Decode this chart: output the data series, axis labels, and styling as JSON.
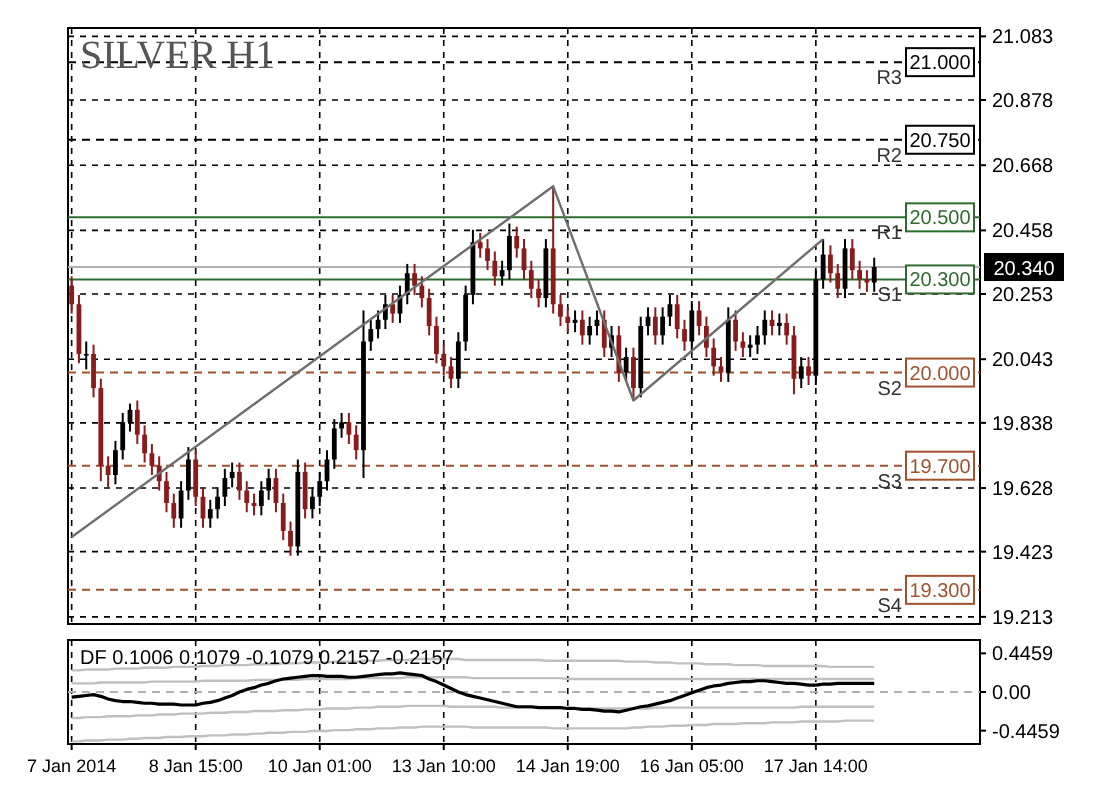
{
  "chart_data": [
    {
      "type": "candlestick",
      "title": "SILVER H1",
      "ylim": [
        19.19,
        21.11
      ],
      "categories": [
        null,
        null,
        null,
        null,
        null,
        null,
        null,
        null,
        null,
        null,
        null,
        null,
        null,
        null,
        null,
        null,
        null,
        null,
        null,
        null,
        null,
        null,
        null,
        null,
        null,
        null,
        null,
        null,
        null,
        null,
        null,
        null,
        null,
        null,
        null,
        null,
        null,
        null,
        null,
        null,
        null,
        null,
        null,
        null,
        null,
        null,
        null,
        null,
        null,
        null,
        null,
        null,
        null,
        null,
        null,
        null,
        null,
        null,
        null,
        null,
        null,
        null,
        null,
        null,
        null,
        null,
        null,
        null,
        null,
        null,
        null,
        null,
        null,
        null,
        null,
        null,
        null,
        null,
        null,
        null,
        null,
        null,
        null,
        null,
        null,
        null,
        null,
        null,
        null,
        null,
        null,
        null,
        null,
        null,
        null,
        null,
        null,
        null,
        null,
        null,
        null,
        null,
        null,
        null,
        null,
        null,
        null,
        null,
        null,
        null,
        null,
        null,
        null,
        null,
        null,
        null,
        null,
        null,
        null,
        null,
        null,
        null,
        null,
        null,
        null
      ],
      "yticks": [
        21.083,
        20.878,
        20.668,
        20.458,
        20.253,
        20.043,
        19.838,
        19.628,
        19.423,
        19.213
      ],
      "tick_labels": "y",
      "grid": true,
      "ref_lines": [
        {
          "axis": "y",
          "value": 21.0,
          "label": "R3",
          "color": "#000000",
          "line_style": "dashed"
        },
        {
          "axis": "y",
          "value": 20.75,
          "label": "R2",
          "color": "#000000",
          "line_style": "dashed"
        },
        {
          "axis": "y",
          "value": 20.5,
          "label": "R1",
          "color": "#2e6b2e",
          "line_style": "solid"
        },
        {
          "axis": "y",
          "value": 20.3,
          "label": "S1",
          "color": "#2e6b2e",
          "line_style": "solid"
        },
        {
          "axis": "y",
          "value": 20.0,
          "label": "S2",
          "color": "#a0522d",
          "line_style": "dashed"
        },
        {
          "axis": "y",
          "value": 19.7,
          "label": "S3",
          "color": "#a0522d",
          "line_style": "dashed"
        },
        {
          "axis": "y",
          "value": 19.3,
          "label": "S4",
          "color": "#a0522d",
          "line_style": "dashed"
        },
        {
          "axis": "y",
          "value": 20.34,
          "label": null,
          "color": "#b0b0b0",
          "line_style": "solid"
        }
      ],
      "annotations": [
        {
          "text": "21.000",
          "y": 21.0
        },
        {
          "text": "20.750",
          "y": 20.75
        },
        {
          "text": "20.500",
          "y": 20.5
        },
        {
          "text": "20.300",
          "y": 20.3
        },
        {
          "text": "20.000",
          "y": 20.0
        },
        {
          "text": "19.700",
          "y": 19.7
        },
        {
          "text": "19.300",
          "y": 19.3
        },
        {
          "text": "20.340",
          "y": 20.34
        }
      ],
      "series": [
        {
          "ohlc": [
            [
              20.28,
              20.31,
              20.19,
              20.22
            ],
            [
              20.22,
              20.25,
              20.03,
              20.06
            ],
            [
              20.06,
              20.1,
              20.01,
              20.06
            ],
            [
              20.06,
              20.09,
              19.92,
              19.95
            ],
            [
              19.95,
              19.98,
              19.65,
              19.7
            ],
            [
              19.7,
              19.73,
              19.63,
              19.67
            ],
            [
              19.67,
              19.78,
              19.64,
              19.75
            ],
            [
              19.75,
              19.87,
              19.72,
              19.84
            ],
            [
              19.84,
              19.9,
              19.81,
              19.88
            ],
            [
              19.88,
              19.91,
              19.77,
              19.8
            ],
            [
              19.8,
              19.83,
              19.71,
              19.74
            ],
            [
              19.74,
              19.77,
              19.67,
              19.7
            ],
            [
              19.7,
              19.73,
              19.62,
              19.65
            ],
            [
              19.65,
              19.68,
              19.55,
              19.58
            ],
            [
              19.58,
              19.61,
              19.5,
              19.53
            ],
            [
              19.53,
              19.65,
              19.5,
              19.62
            ],
            [
              19.62,
              19.76,
              19.59,
              19.72
            ],
            [
              19.72,
              19.75,
              19.57,
              19.6
            ],
            [
              19.6,
              19.63,
              19.5,
              19.53
            ],
            [
              19.53,
              19.59,
              19.5,
              19.56
            ],
            [
              19.56,
              19.63,
              19.53,
              19.6
            ],
            [
              19.6,
              19.69,
              19.57,
              19.66
            ],
            [
              19.66,
              19.71,
              19.63,
              19.68
            ],
            [
              19.68,
              19.71,
              19.59,
              19.62
            ],
            [
              19.62,
              19.65,
              19.55,
              19.58
            ],
            [
              19.58,
              19.61,
              19.54,
              19.57
            ],
            [
              19.57,
              19.65,
              19.54,
              19.62
            ],
            [
              19.62,
              19.69,
              19.59,
              19.66
            ],
            [
              19.66,
              19.69,
              19.55,
              19.58
            ],
            [
              19.58,
              19.61,
              19.46,
              19.49
            ],
            [
              19.49,
              19.52,
              19.41,
              19.44
            ],
            [
              19.44,
              19.72,
              19.41,
              19.68
            ],
            [
              19.68,
              19.71,
              19.53,
              19.56
            ],
            [
              19.56,
              19.63,
              19.53,
              19.6
            ],
            [
              19.6,
              19.68,
              19.57,
              19.65
            ],
            [
              19.65,
              19.75,
              19.62,
              19.72
            ],
            [
              19.72,
              19.85,
              19.69,
              19.82
            ],
            [
              19.82,
              19.87,
              19.79,
              19.84
            ],
            [
              19.84,
              19.87,
              19.77,
              19.8
            ],
            [
              19.8,
              19.83,
              19.72,
              19.75
            ],
            [
              19.75,
              20.2,
              19.66,
              20.1
            ],
            [
              20.1,
              20.17,
              20.07,
              20.14
            ],
            [
              20.14,
              20.2,
              20.11,
              20.17
            ],
            [
              20.17,
              20.25,
              20.14,
              20.22
            ],
            [
              20.22,
              20.25,
              20.16,
              20.19
            ],
            [
              20.19,
              20.28,
              20.16,
              20.25
            ],
            [
              20.25,
              20.35,
              20.22,
              20.32
            ],
            [
              20.32,
              20.35,
              20.25,
              20.28
            ],
            [
              20.28,
              20.31,
              20.21,
              20.24
            ],
            [
              20.24,
              20.27,
              20.12,
              20.15
            ],
            [
              20.15,
              20.18,
              20.03,
              20.06
            ],
            [
              20.06,
              20.09,
              19.99,
              20.02
            ],
            [
              20.02,
              20.05,
              19.95,
              19.98
            ],
            [
              19.98,
              20.13,
              19.95,
              20.1
            ],
            [
              20.1,
              20.28,
              20.07,
              20.25
            ],
            [
              20.25,
              20.46,
              20.22,
              20.42
            ],
            [
              20.42,
              20.45,
              20.37,
              20.4
            ],
            [
              20.4,
              20.43,
              20.33,
              20.36
            ],
            [
              20.36,
              20.39,
              20.28,
              20.31
            ],
            [
              20.31,
              20.36,
              20.28,
              20.33
            ],
            [
              20.33,
              20.48,
              20.3,
              20.44
            ],
            [
              20.44,
              20.47,
              20.37,
              20.4
            ],
            [
              20.4,
              20.43,
              20.3,
              20.33
            ],
            [
              20.33,
              20.36,
              20.24,
              20.27
            ],
            [
              20.27,
              20.3,
              20.21,
              20.24
            ],
            [
              20.24,
              20.43,
              20.21,
              20.4
            ],
            [
              20.4,
              20.6,
              20.19,
              20.22
            ],
            [
              20.22,
              20.25,
              20.15,
              20.18
            ],
            [
              20.18,
              20.21,
              20.13,
              20.16
            ],
            [
              20.16,
              20.2,
              20.13,
              20.17
            ],
            [
              20.17,
              20.2,
              20.09,
              20.12
            ],
            [
              20.12,
              20.18,
              20.09,
              20.15
            ],
            [
              20.15,
              20.2,
              20.12,
              20.17
            ],
            [
              20.17,
              20.2,
              20.05,
              20.08
            ],
            [
              20.08,
              20.15,
              20.05,
              20.12
            ],
            [
              20.12,
              20.15,
              19.97,
              20.0
            ],
            [
              20.0,
              20.08,
              19.97,
              20.05
            ],
            [
              20.05,
              20.08,
              19.91,
              19.95
            ],
            [
              19.95,
              20.18,
              19.92,
              20.15
            ],
            [
              20.15,
              20.21,
              20.12,
              20.18
            ],
            [
              20.18,
              20.21,
              20.09,
              20.12
            ],
            [
              20.12,
              20.21,
              20.09,
              20.18
            ],
            [
              20.18,
              20.25,
              20.15,
              20.22
            ],
            [
              20.22,
              20.25,
              20.11,
              20.14
            ],
            [
              20.14,
              20.17,
              20.07,
              20.1
            ],
            [
              20.1,
              20.23,
              20.07,
              20.2
            ],
            [
              20.2,
              20.23,
              20.12,
              20.15
            ],
            [
              20.15,
              20.18,
              20.05,
              20.08
            ],
            [
              20.08,
              20.11,
              19.99,
              20.02
            ],
            [
              20.02,
              20.05,
              19.97,
              20.0
            ],
            [
              20.0,
              20.21,
              19.97,
              20.17
            ],
            [
              20.17,
              20.2,
              20.07,
              20.1
            ],
            [
              20.1,
              20.13,
              20.05,
              20.08
            ],
            [
              20.08,
              20.12,
              20.05,
              20.09
            ],
            [
              20.09,
              20.15,
              20.06,
              20.12
            ],
            [
              20.12,
              20.2,
              20.09,
              20.17
            ],
            [
              20.17,
              20.2,
              20.12,
              20.15
            ],
            [
              20.15,
              20.19,
              20.12,
              20.16
            ],
            [
              20.16,
              20.19,
              20.09,
              20.12
            ],
            [
              20.12,
              20.15,
              19.93,
              19.98
            ],
            [
              19.98,
              20.05,
              19.95,
              20.02
            ],
            [
              20.02,
              20.05,
              19.96,
              19.99
            ],
            [
              19.99,
              20.33,
              19.96,
              20.3
            ],
            [
              20.3,
              20.43,
              20.27,
              20.38
            ],
            [
              20.38,
              20.41,
              20.29,
              20.32
            ],
            [
              20.32,
              20.35,
              20.24,
              20.27
            ],
            [
              20.27,
              20.43,
              20.24,
              20.4
            ],
            [
              20.4,
              20.43,
              20.3,
              20.33
            ],
            [
              20.33,
              20.36,
              20.27,
              20.3
            ],
            [
              20.3,
              20.33,
              20.26,
              20.29
            ],
            [
              20.29,
              20.37,
              20.26,
              20.34
            ],
            null,
            null,
            null,
            null,
            null,
            null,
            null,
            null,
            null,
            null,
            null,
            null,
            null,
            null
          ],
          "colors": [
            "#8b1a1a",
            "#8b1a1a",
            "#000000",
            "#8b1a1a",
            "#8b1a1a",
            "#8b1a1a",
            "#000000",
            "#000000",
            "#000000",
            "#8b1a1a",
            "#8b1a1a",
            "#8b1a1a",
            "#8b1a1a",
            "#8b1a1a",
            "#8b1a1a",
            "#000000",
            "#000000",
            "#8b1a1a",
            "#8b1a1a",
            "#000000",
            "#000000",
            "#000000",
            "#000000",
            "#8b1a1a",
            "#8b1a1a",
            "#8b1a1a",
            "#000000",
            "#000000",
            "#8b1a1a",
            "#8b1a1a",
            "#8b1a1a",
            "#000000",
            "#8b1a1a",
            "#000000",
            "#000000",
            "#000000",
            "#000000",
            "#000000",
            "#8b1a1a",
            "#8b1a1a",
            "#000000",
            "#000000",
            "#000000",
            "#000000",
            "#8b1a1a",
            "#000000",
            "#000000",
            "#8b1a1a",
            "#8b1a1a",
            "#8b1a1a",
            "#8b1a1a",
            "#8b1a1a",
            "#8b1a1a",
            "#000000",
            "#000000",
            "#000000",
            "#8b1a1a",
            "#8b1a1a",
            "#8b1a1a",
            "#000000",
            "#000000",
            "#8b1a1a",
            "#8b1a1a",
            "#8b1a1a",
            "#8b1a1a",
            "#000000",
            "#8b1a1a",
            "#8b1a1a",
            "#8b1a1a",
            "#000000",
            "#8b1a1a",
            "#000000",
            "#000000",
            "#8b1a1a",
            "#000000",
            "#8b1a1a",
            "#000000",
            "#8b1a1a",
            "#000000",
            "#000000",
            "#8b1a1a",
            "#000000",
            "#000000",
            "#8b1a1a",
            "#8b1a1a",
            "#000000",
            "#8b1a1a",
            "#8b1a1a",
            "#8b1a1a",
            "#8b1a1a",
            "#000000",
            "#8b1a1a",
            "#8b1a1a",
            "#000000",
            "#000000",
            "#000000",
            "#8b1a1a",
            "#000000",
            "#8b1a1a",
            "#8b1a1a",
            "#000000",
            "#8b1a1a",
            "#000000",
            "#000000",
            "#8b1a1a",
            "#8b1a1a",
            "#000000",
            "#8b1a1a",
            "#8b1a1a",
            "#8b1a1a",
            "#000000",
            null,
            null,
            null,
            null,
            null,
            null,
            null,
            null,
            null,
            null,
            null,
            null,
            null,
            null
          ]
        },
        {
          "type": "line",
          "color": "#6e6e6e",
          "values": [
            19.47,
            null,
            null,
            null,
            null,
            null,
            null,
            null,
            null,
            null,
            null,
            null,
            null,
            null,
            null,
            null,
            null,
            null,
            null,
            null,
            null,
            null,
            null,
            null,
            null,
            null,
            null,
            null,
            null,
            null,
            null,
            null,
            null,
            null,
            null,
            null,
            null,
            null,
            null,
            null,
            null,
            null,
            null,
            null,
            null,
            null,
            null,
            null,
            null,
            null,
            null,
            null,
            null,
            null,
            null,
            null,
            null,
            null,
            null,
            null,
            null,
            null,
            null,
            null,
            null,
            null,
            20.6,
            null,
            null,
            null,
            null,
            null,
            null,
            null,
            null,
            null,
            null,
            19.91,
            null,
            null,
            null,
            null,
            null,
            null,
            null,
            null,
            null,
            null,
            null,
            null,
            null,
            null,
            null,
            null,
            null,
            null,
            null,
            null,
            null,
            null,
            null,
            null,
            null,
            20.43,
            null,
            null,
            null,
            null,
            null,
            null,
            null,
            null,
            null,
            null,
            null,
            null,
            null,
            null,
            null,
            null,
            null,
            null,
            null,
            null,
            null
          ]
        }
      ]
    },
    {
      "type": "line",
      "title": "DF 0.1006 0.1079 -0.1079 0.2157 -0.2157",
      "ylim": [
        -0.6,
        0.6
      ],
      "categories": [
        "7 Jan 2014",
        null,
        null,
        null,
        null,
        null,
        null,
        null,
        null,
        null,
        null,
        null,
        null,
        null,
        null,
        null,
        null,
        "8 Jan 15:00",
        null,
        null,
        null,
        null,
        null,
        null,
        null,
        null,
        null,
        null,
        null,
        null,
        null,
        null,
        null,
        null,
        "10 Jan 01:00",
        null,
        null,
        null,
        null,
        null,
        null,
        null,
        null,
        null,
        null,
        null,
        null,
        null,
        null,
        null,
        null,
        "13 Jan 10:00",
        null,
        null,
        null,
        null,
        null,
        null,
        null,
        null,
        null,
        null,
        null,
        null,
        null,
        null,
        null,
        null,
        "14 Jan 19:00",
        null,
        null,
        null,
        null,
        null,
        null,
        null,
        null,
        null,
        null,
        null,
        null,
        null,
        null,
        null,
        null,
        "16 Jan 05:00",
        null,
        null,
        null,
        null,
        null,
        null,
        null,
        null,
        null,
        null,
        null,
        null,
        null,
        null,
        null,
        null,
        "17 Jan 14:00",
        null,
        null,
        null,
        null,
        null,
        null,
        null,
        null,
        null,
        null,
        null,
        null,
        null,
        null,
        null,
        null,
        null,
        null,
        null,
        null,
        null,
        null
      ],
      "yticks": [
        0.4459,
        {
          "value": 0,
          "label": "0.00"
        },
        -0.4459
      ],
      "grid": "x",
      "ref_lines": [
        {
          "axis": "y",
          "value": 0,
          "label": null,
          "color": "#b0b0b0",
          "line_style": "dashed"
        }
      ],
      "series": [
        {
          "color": "#c0c0c0",
          "values": [
            0.25,
            0.25,
            0.26,
            0.26,
            0.26,
            0.26,
            0.27,
            0.27,
            0.27,
            0.27,
            0.28,
            0.28,
            0.28,
            0.28,
            0.29,
            0.29,
            0.29,
            0.29,
            0.3,
            0.3,
            0.3,
            0.31,
            0.31,
            0.31,
            0.31,
            0.32,
            0.32,
            0.32,
            0.32,
            0.33,
            0.33,
            0.33,
            0.34,
            0.34,
            0.34,
            0.34,
            0.35,
            0.35,
            0.35,
            0.35,
            0.36,
            0.36,
            0.36,
            0.37,
            0.37,
            0.37,
            0.37,
            0.38,
            0.38,
            0.38,
            0.38,
            0.38,
            0.38,
            0.38,
            0.37,
            0.37,
            0.37,
            0.37,
            0.37,
            0.37,
            0.37,
            0.37,
            0.37,
            0.37,
            0.37,
            0.36,
            0.36,
            0.36,
            0.36,
            0.36,
            0.36,
            0.36,
            0.36,
            0.36,
            0.36,
            0.36,
            0.35,
            0.35,
            0.35,
            0.35,
            0.34,
            0.34,
            0.34,
            0.33,
            0.33,
            0.33,
            0.33,
            0.32,
            0.32,
            0.32,
            0.32,
            0.31,
            0.31,
            0.31,
            0.31,
            0.3,
            0.3,
            0.3,
            0.3,
            0.3,
            0.3,
            0.3,
            0.3,
            0.3,
            0.29,
            0.29,
            0.29,
            0.29,
            0.29,
            0.29,
            0.29,
            null,
            null,
            null,
            null,
            null,
            null,
            null,
            null,
            null,
            null,
            null,
            null,
            null,
            null
          ]
        },
        {
          "color": "#c0c0c0",
          "values": [
            0.1,
            0.1,
            0.1,
            0.1,
            0.11,
            0.11,
            0.11,
            0.11,
            0.11,
            0.11,
            0.11,
            0.12,
            0.12,
            0.12,
            0.12,
            0.12,
            0.12,
            0.12,
            0.13,
            0.13,
            0.13,
            0.13,
            0.13,
            0.13,
            0.13,
            0.14,
            0.14,
            0.14,
            0.14,
            0.14,
            0.14,
            0.14,
            0.15,
            0.15,
            0.15,
            0.15,
            0.15,
            0.15,
            0.15,
            0.16,
            0.16,
            0.16,
            0.16,
            0.16,
            0.16,
            0.16,
            0.17,
            0.17,
            0.17,
            0.17,
            0.17,
            0.17,
            0.17,
            0.17,
            0.17,
            0.16,
            0.16,
            0.16,
            0.16,
            0.16,
            0.16,
            0.16,
            0.16,
            0.16,
            0.16,
            0.16,
            0.16,
            0.16,
            0.15,
            0.15,
            0.15,
            0.15,
            0.15,
            0.15,
            0.15,
            0.15,
            0.15,
            0.15,
            0.15,
            0.15,
            0.15,
            0.15,
            0.15,
            0.15,
            0.15,
            0.15,
            0.15,
            0.15,
            0.15,
            0.15,
            0.15,
            0.15,
            0.15,
            0.15,
            0.15,
            0.15,
            0.15,
            0.15,
            0.15,
            0.15,
            0.15,
            0.15,
            0.15,
            0.15,
            0.15,
            0.15,
            0.15,
            0.15,
            0.15,
            0.15,
            0.15,
            null,
            null,
            null,
            null,
            null,
            null,
            null,
            null,
            null,
            null,
            null,
            null,
            null,
            null
          ]
        },
        {
          "color": "#c0c0c0",
          "values": [
            -0.3,
            -0.3,
            -0.29,
            -0.29,
            -0.29,
            -0.28,
            -0.28,
            -0.28,
            -0.28,
            -0.27,
            -0.27,
            -0.27,
            -0.26,
            -0.26,
            -0.26,
            -0.25,
            -0.25,
            -0.25,
            -0.25,
            -0.24,
            -0.24,
            -0.24,
            -0.23,
            -0.23,
            -0.23,
            -0.22,
            -0.22,
            -0.22,
            -0.22,
            -0.21,
            -0.21,
            -0.21,
            -0.2,
            -0.2,
            -0.2,
            -0.19,
            -0.19,
            -0.19,
            -0.19,
            -0.18,
            -0.18,
            -0.18,
            -0.17,
            -0.17,
            -0.17,
            -0.17,
            -0.16,
            -0.16,
            -0.16,
            -0.16,
            -0.16,
            -0.16,
            -0.17,
            -0.17,
            -0.17,
            -0.17,
            -0.17,
            -0.17,
            -0.17,
            -0.18,
            -0.18,
            -0.18,
            -0.18,
            -0.18,
            -0.18,
            -0.18,
            -0.18,
            -0.18,
            -0.19,
            -0.19,
            -0.19,
            -0.19,
            -0.19,
            -0.19,
            -0.19,
            -0.19,
            -0.19,
            -0.19,
            -0.19,
            -0.19,
            -0.18,
            -0.18,
            -0.18,
            -0.18,
            -0.18,
            -0.18,
            -0.18,
            -0.18,
            -0.18,
            -0.18,
            -0.18,
            -0.18,
            -0.18,
            -0.18,
            -0.18,
            -0.18,
            -0.18,
            -0.18,
            -0.18,
            -0.18,
            -0.17,
            -0.17,
            -0.17,
            -0.17,
            -0.17,
            -0.17,
            -0.17,
            -0.17,
            -0.17,
            -0.17,
            -0.17,
            null,
            null,
            null,
            null,
            null,
            null,
            null,
            null,
            null,
            null,
            null,
            null,
            null,
            null
          ]
        },
        {
          "color": "#c0c0c0",
          "values": [
            -0.57,
            -0.57,
            -0.56,
            -0.56,
            -0.56,
            -0.55,
            -0.55,
            -0.55,
            -0.54,
            -0.54,
            -0.53,
            -0.53,
            -0.53,
            -0.52,
            -0.52,
            -0.52,
            -0.51,
            -0.51,
            -0.51,
            -0.5,
            -0.5,
            -0.5,
            -0.49,
            -0.49,
            -0.49,
            -0.48,
            -0.48,
            -0.47,
            -0.47,
            -0.47,
            -0.46,
            -0.46,
            -0.46,
            -0.45,
            -0.45,
            -0.45,
            -0.44,
            -0.44,
            -0.44,
            -0.43,
            -0.43,
            -0.43,
            -0.42,
            -0.42,
            -0.42,
            -0.41,
            -0.41,
            -0.41,
            -0.4,
            -0.4,
            -0.4,
            -0.4,
            -0.4,
            -0.4,
            -0.4,
            -0.41,
            -0.41,
            -0.41,
            -0.41,
            -0.41,
            -0.41,
            -0.41,
            -0.41,
            -0.41,
            -0.41,
            -0.41,
            -0.42,
            -0.42,
            -0.42,
            -0.42,
            -0.42,
            -0.42,
            -0.42,
            -0.42,
            -0.42,
            -0.42,
            -0.42,
            -0.41,
            -0.41,
            -0.4,
            -0.4,
            -0.4,
            -0.39,
            -0.39,
            -0.39,
            -0.38,
            -0.38,
            -0.38,
            -0.37,
            -0.37,
            -0.37,
            -0.37,
            -0.36,
            -0.36,
            -0.36,
            -0.36,
            -0.35,
            -0.35,
            -0.35,
            -0.35,
            -0.34,
            -0.34,
            -0.34,
            -0.34,
            -0.34,
            -0.34,
            -0.33,
            -0.33,
            -0.33,
            -0.33,
            -0.33,
            null,
            null,
            null,
            null,
            null,
            null,
            null,
            null,
            null,
            null,
            null,
            null,
            null,
            null
          ]
        },
        {
          "color": "#000000",
          "values": [
            -0.06,
            -0.05,
            -0.04,
            -0.03,
            -0.05,
            -0.08,
            -0.1,
            -0.11,
            -0.11,
            -0.12,
            -0.13,
            -0.13,
            -0.14,
            -0.14,
            -0.14,
            -0.15,
            -0.15,
            -0.15,
            -0.13,
            -0.12,
            -0.1,
            -0.07,
            -0.04,
            0.0,
            0.03,
            0.05,
            0.08,
            0.1,
            0.13,
            0.15,
            0.16,
            0.17,
            0.18,
            0.19,
            0.19,
            0.18,
            0.18,
            0.18,
            0.17,
            0.17,
            0.18,
            0.19,
            0.2,
            0.21,
            0.21,
            0.22,
            0.21,
            0.2,
            0.19,
            0.15,
            0.12,
            0.08,
            0.04,
            0.0,
            -0.03,
            -0.05,
            -0.07,
            -0.09,
            -0.11,
            -0.13,
            -0.15,
            -0.17,
            -0.17,
            -0.17,
            -0.18,
            -0.18,
            -0.18,
            -0.18,
            -0.19,
            -0.19,
            -0.2,
            -0.2,
            -0.21,
            -0.22,
            -0.22,
            -0.23,
            -0.21,
            -0.19,
            -0.17,
            -0.16,
            -0.14,
            -0.12,
            -0.1,
            -0.07,
            -0.04,
            -0.01,
            0.02,
            0.05,
            0.07,
            0.08,
            0.1,
            0.11,
            0.12,
            0.12,
            0.13,
            0.13,
            0.12,
            0.11,
            0.1,
            0.1,
            0.09,
            0.08,
            0.08,
            0.09,
            0.09,
            0.1,
            0.1,
            0.1,
            0.1,
            0.1,
            0.1,
            null,
            null,
            null,
            null,
            null,
            null,
            null,
            null,
            null,
            null,
            null,
            null,
            null,
            null
          ]
        }
      ]
    }
  ]
}
